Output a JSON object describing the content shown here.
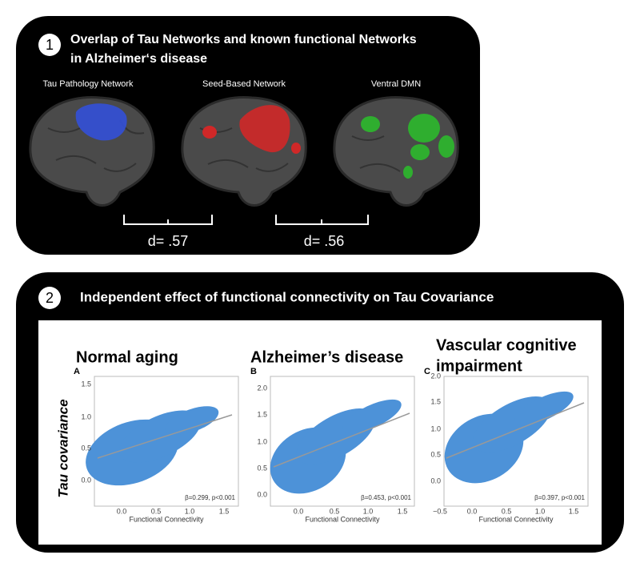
{
  "panel1": {
    "number": "1",
    "title_lines": [
      "Overlap of Tau Networks and known functional Networks",
      "in Alzheimer‘s disease"
    ],
    "networks": [
      "Tau Pathology Network",
      "Seed-Based Network",
      "Ventral DMN"
    ],
    "comparisons": [
      "d= .57",
      "d= .56"
    ]
  },
  "panel2": {
    "number": "2",
    "title": "Independent effect of functional connectivity on Tau Covariance",
    "y_label": "Tau covariance",
    "plots": [
      {
        "title_lines": [
          "Normal aging"
        ],
        "letter": "A",
        "yticks": [
          "0.0",
          "0.5",
          "1.0",
          "1.5"
        ],
        "xticks": [
          "0.0",
          "0.5",
          "1.0",
          "1.5"
        ],
        "x_label": "Functional Connectivity",
        "stat": "β=0.299, p<0.001"
      },
      {
        "title_lines": [
          "Alzheimer’s disease"
        ],
        "letter": "B",
        "yticks": [
          "0.0",
          "0.5",
          "1.0",
          "1.5",
          "2.0"
        ],
        "xticks": [
          "0.0",
          "0.5",
          "1.0",
          "1.5"
        ],
        "x_label": "Functional Connectivity",
        "stat": "β=0.453, p<0.001"
      },
      {
        "title_lines": [
          "Vascular cognitive",
          "impairment"
        ],
        "letter": "C",
        "yticks": [
          "0.0",
          "0.5",
          "1.0",
          "1.5",
          "2.0"
        ],
        "xticks": [
          "−0.5",
          "0.0",
          "0.5",
          "1.0",
          "1.5"
        ],
        "x_label": "Functional Connectivity",
        "stat": "β=0.397, p<0.001"
      }
    ]
  }
}
